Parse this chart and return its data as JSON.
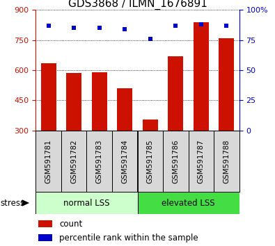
{
  "title": "GDS3868 / ILMN_1676891",
  "categories": [
    "GSM591781",
    "GSM591782",
    "GSM591783",
    "GSM591784",
    "GSM591785",
    "GSM591786",
    "GSM591787",
    "GSM591788"
  ],
  "counts": [
    635,
    587,
    590,
    510,
    355,
    668,
    840,
    760
  ],
  "percentiles": [
    87,
    85,
    85,
    84,
    76,
    87,
    88,
    87
  ],
  "ylim_left": [
    300,
    900
  ],
  "ylim_right": [
    0,
    100
  ],
  "yticks_left": [
    300,
    450,
    600,
    750,
    900
  ],
  "yticks_right": [
    0,
    25,
    50,
    75,
    100
  ],
  "bar_color": "#cc1100",
  "dot_color": "#0000cc",
  "group1_label": "normal LSS",
  "group2_label": "elevated LSS",
  "group1_color": "#ccffcc",
  "group2_color": "#44dd44",
  "stress_label": "stress",
  "legend_count_label": "count",
  "legend_pct_label": "percentile rank within the sample",
  "title_fontsize": 11,
  "tick_fontsize": 8,
  "label_fontsize": 8.5,
  "cat_label_fontsize": 7.5
}
